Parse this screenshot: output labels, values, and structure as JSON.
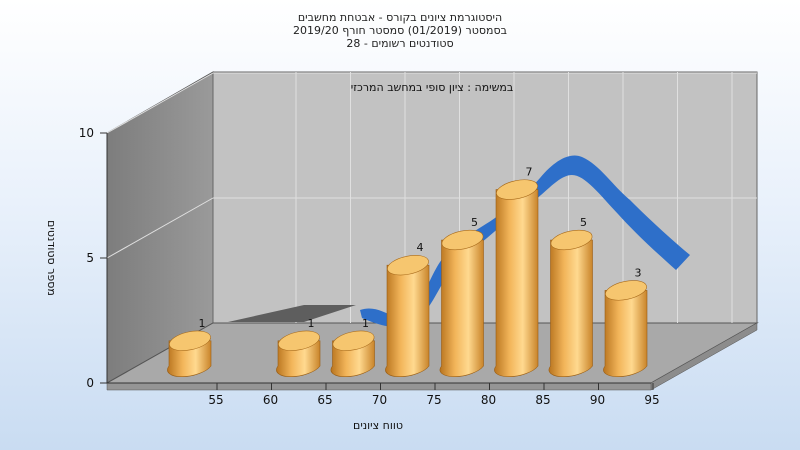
{
  "chart_data": {
    "type": "bar",
    "title_lines": [
      "היסטוגרמת ציונים בקורס - אבטחת מחשבים",
      "בסמסטר  (01/2019)  סמסטר חורף 2019/20",
      "סטודנטים רשומים - 28"
    ],
    "inner_title": "במשימה : ציון סופי במחשב המרכזי",
    "xlabel": "טווח ציונים",
    "ylabel": "מספר סטודנטים",
    "x_ticks": [
      "55",
      "60",
      "65",
      "70",
      "75",
      "80",
      "85",
      "90",
      "95"
    ],
    "y_ticks": [
      "0",
      "5",
      "10"
    ],
    "ylim": [
      0,
      10
    ],
    "bins": [
      {
        "x": 55,
        "value": 1
      },
      {
        "x": 65,
        "value": 1
      },
      {
        "x": 70,
        "value": 1
      },
      {
        "x": 75,
        "value": 4
      },
      {
        "x": 80,
        "value": 5
      },
      {
        "x": 85,
        "value": 7
      },
      {
        "x": 90,
        "value": 5
      },
      {
        "x": 95,
        "value": 3
      }
    ],
    "bar_labels": [
      "1",
      "1",
      "1",
      "4",
      "5",
      "7",
      "5",
      "3"
    ],
    "bar_color": "#e8a23a",
    "trend_color": "#2e6fc9",
    "grid": true
  }
}
